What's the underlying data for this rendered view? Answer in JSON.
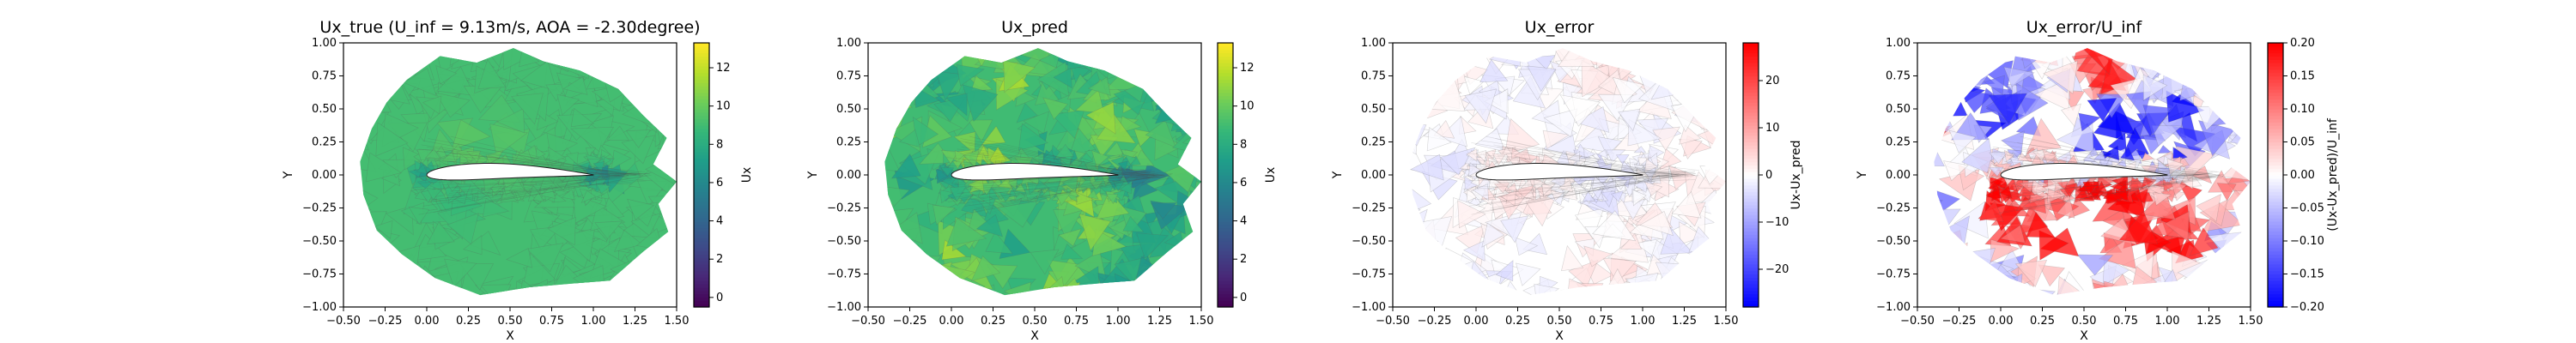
{
  "chart_data": [
    {
      "type": "heatmap",
      "title": "Ux_true (U_inf = 9.13m/s, AOA = -2.30degree)",
      "xlabel": "X",
      "ylabel": "Y",
      "xlim": [
        -0.5,
        1.5
      ],
      "ylim": [
        -1.0,
        1.0
      ],
      "xticks": [
        "−0.50",
        "−0.25",
        "0.00",
        "0.25",
        "0.50",
        "0.75",
        "1.00",
        "1.25",
        "1.50"
      ],
      "yticks": [
        "−1.00",
        "−0.75",
        "−0.50",
        "−0.25",
        "0.00",
        "0.25",
        "0.50",
        "0.75",
        "1.00"
      ],
      "colorbar": {
        "label": "Ux",
        "cmap": "viridis",
        "range": [
          -0.5,
          13.3
        ],
        "ticks": [
          "0",
          "2",
          "4",
          "6",
          "8",
          "10",
          "12"
        ]
      },
      "field": {
        "mode": "true",
        "base": 9.1
      }
    },
    {
      "type": "heatmap",
      "title": "Ux_pred",
      "xlabel": "X",
      "ylabel": "Y",
      "xlim": [
        -0.5,
        1.5
      ],
      "ylim": [
        -1.0,
        1.0
      ],
      "xticks": [
        "−0.50",
        "−0.25",
        "0.00",
        "0.25",
        "0.50",
        "0.75",
        "1.00",
        "1.25",
        "1.50"
      ],
      "yticks": [
        "−1.00",
        "−0.75",
        "−0.50",
        "−0.25",
        "0.00",
        "0.25",
        "0.50",
        "0.75",
        "1.00"
      ],
      "colorbar": {
        "label": "Ux",
        "cmap": "viridis",
        "range": [
          -0.5,
          13.3
        ],
        "ticks": [
          "0",
          "2",
          "4",
          "6",
          "8",
          "10",
          "12"
        ]
      },
      "field": {
        "mode": "pred",
        "base": 9.0
      }
    },
    {
      "type": "heatmap",
      "title": "Ux_error",
      "xlabel": "X",
      "ylabel": "Y",
      "xlim": [
        -0.5,
        1.5
      ],
      "ylim": [
        -1.0,
        1.0
      ],
      "xticks": [
        "−0.50",
        "−0.25",
        "0.00",
        "0.25",
        "0.50",
        "0.75",
        "1.00",
        "1.25",
        "1.50"
      ],
      "yticks": [
        "−1.00",
        "−0.75",
        "−0.50",
        "−0.25",
        "0.00",
        "0.25",
        "0.50",
        "0.75",
        "1.00"
      ],
      "colorbar": {
        "label": "Ux-Ux_pred",
        "cmap": "bwr",
        "range": [
          -28,
          28
        ],
        "ticks": [
          "−20",
          "−10",
          "0",
          "10",
          "20"
        ]
      },
      "field": {
        "mode": "error",
        "base": 0
      }
    },
    {
      "type": "heatmap",
      "title": "Ux_error/U_inf",
      "xlabel": "X",
      "ylabel": "Y",
      "xlim": [
        -0.5,
        1.5
      ],
      "ylim": [
        -1.0,
        1.0
      ],
      "xticks": [
        "−0.50",
        "−0.25",
        "0.00",
        "0.25",
        "0.50",
        "0.75",
        "1.00",
        "1.25",
        "1.50"
      ],
      "yticks": [
        "−1.00",
        "−0.75",
        "−0.50",
        "−0.25",
        "0.00",
        "0.25",
        "0.50",
        "0.75",
        "1.00"
      ],
      "colorbar": {
        "label": "(Ux-Ux_pred)/U_inf",
        "cmap": "bwr",
        "range": [
          -0.2,
          0.2
        ],
        "ticks": [
          "−0.20",
          "−0.15",
          "−0.10",
          "−0.05",
          "0.00",
          "0.05",
          "0.10",
          "0.15",
          "0.20"
        ]
      },
      "field": {
        "mode": "relerror",
        "base": 0
      }
    }
  ]
}
